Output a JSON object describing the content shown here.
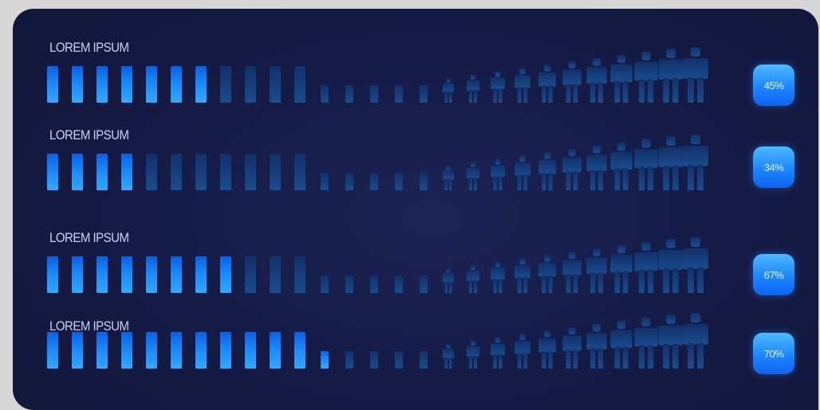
{
  "chart_data": {
    "type": "pictorial-bar",
    "segments_total": 27,
    "rows": [
      {
        "label": "LOREM IPSUM",
        "value": 45,
        "value_label": "45%",
        "active_segments": 7
      },
      {
        "label": "LOREM IPSUM",
        "value": 34,
        "value_label": "34%",
        "active_segments": 4
      },
      {
        "label": "LOREM IPSUM",
        "value": 67,
        "value_label": "67%",
        "active_segments": 8
      },
      {
        "label": "LOREM IPSUM",
        "value": 70,
        "value_label": "70%",
        "active_segments": 12
      }
    ],
    "segment_shapes": [
      "tall-bar",
      "tall-bar",
      "tall-bar",
      "tall-bar",
      "tall-bar",
      "tall-bar",
      "tall-bar",
      "tall-bar",
      "tall-bar",
      "tall-bar",
      "tall-bar",
      "short-bar",
      "short-bar",
      "short-bar",
      "short-bar",
      "short-bar",
      "person",
      "person",
      "person",
      "person",
      "person",
      "person",
      "person",
      "person",
      "person",
      "person",
      "person"
    ]
  },
  "colors": {
    "background": "#161c48",
    "active_segment": "#1a8cff",
    "inactive_segment": "#173f7e",
    "badge": "#1d86ff",
    "label_text": "#c9d3ef"
  }
}
